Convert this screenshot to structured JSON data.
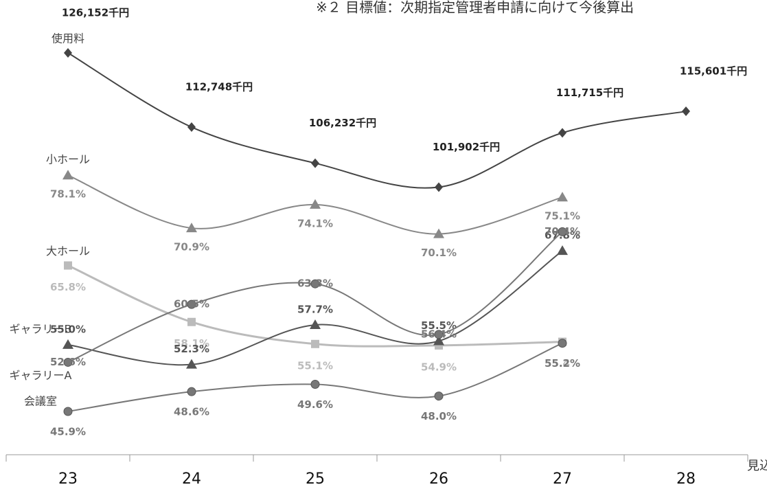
{
  "chart_data": {
    "type": "line",
    "note": "※２ 目標値：次期指定管理者申請に向けて今後算出",
    "x_annotation": "見込",
    "categories": [
      "23",
      "24",
      "25",
      "26",
      "27",
      "28"
    ],
    "ylim": [
      40,
      102
    ],
    "y2lim": [
      53577,
      135705
    ],
    "smooth": true,
    "series": [
      {
        "name": "使用料",
        "color": "#444444",
        "marker": "diamond",
        "axis": "y2",
        "values": [
          126152,
          112748,
          106232,
          101902,
          111715,
          115601
        ],
        "value_labels": [
          "126,152千円",
          "112,748千円",
          "106,232千円",
          "101,902千円",
          "111,715千円",
          "115,601千円"
        ]
      },
      {
        "name": "小ホール",
        "color": "#888888",
        "marker": "triangle",
        "values": [
          78.1,
          70.9,
          74.1,
          70.1,
          75.1,
          null
        ],
        "value_labels": [
          "78.1%",
          "70.9%",
          "74.1%",
          "70.1%",
          "75.1%",
          null
        ]
      },
      {
        "name": "大ホール",
        "color": "#bbbbbb",
        "marker": "square",
        "values": [
          65.8,
          58.1,
          55.1,
          54.9,
          55.4,
          null
        ],
        "value_labels": [
          "65.8%",
          "58.1%",
          "55.1%",
          "54.9%",
          "55.4%",
          null
        ]
      },
      {
        "name": "ギャラリーB",
        "color": "#555555",
        "marker": "triangle",
        "values": [
          55.0,
          52.3,
          57.7,
          55.5,
          67.8,
          null
        ],
        "value_labels": [
          "55.0%",
          "52.3%",
          "57.7%",
          "55.5%",
          "67.8%",
          null
        ]
      },
      {
        "name": "ギャラリーA",
        "color": "#777777",
        "marker": "circle",
        "values": [
          52.6,
          60.5,
          63.3,
          56.4,
          70.4,
          null
        ],
        "value_labels": [
          "52.6%",
          "60.5%",
          "63.3%",
          "56.4%",
          "70.4%",
          null
        ]
      },
      {
        "name": "会議室",
        "color": "#777777",
        "marker": "circle",
        "values": [
          45.9,
          48.6,
          49.6,
          48.0,
          55.2,
          null
        ],
        "value_labels": [
          "45.9%",
          "48.6%",
          "49.6%",
          "48.0%",
          "55.2%",
          null
        ]
      }
    ]
  }
}
